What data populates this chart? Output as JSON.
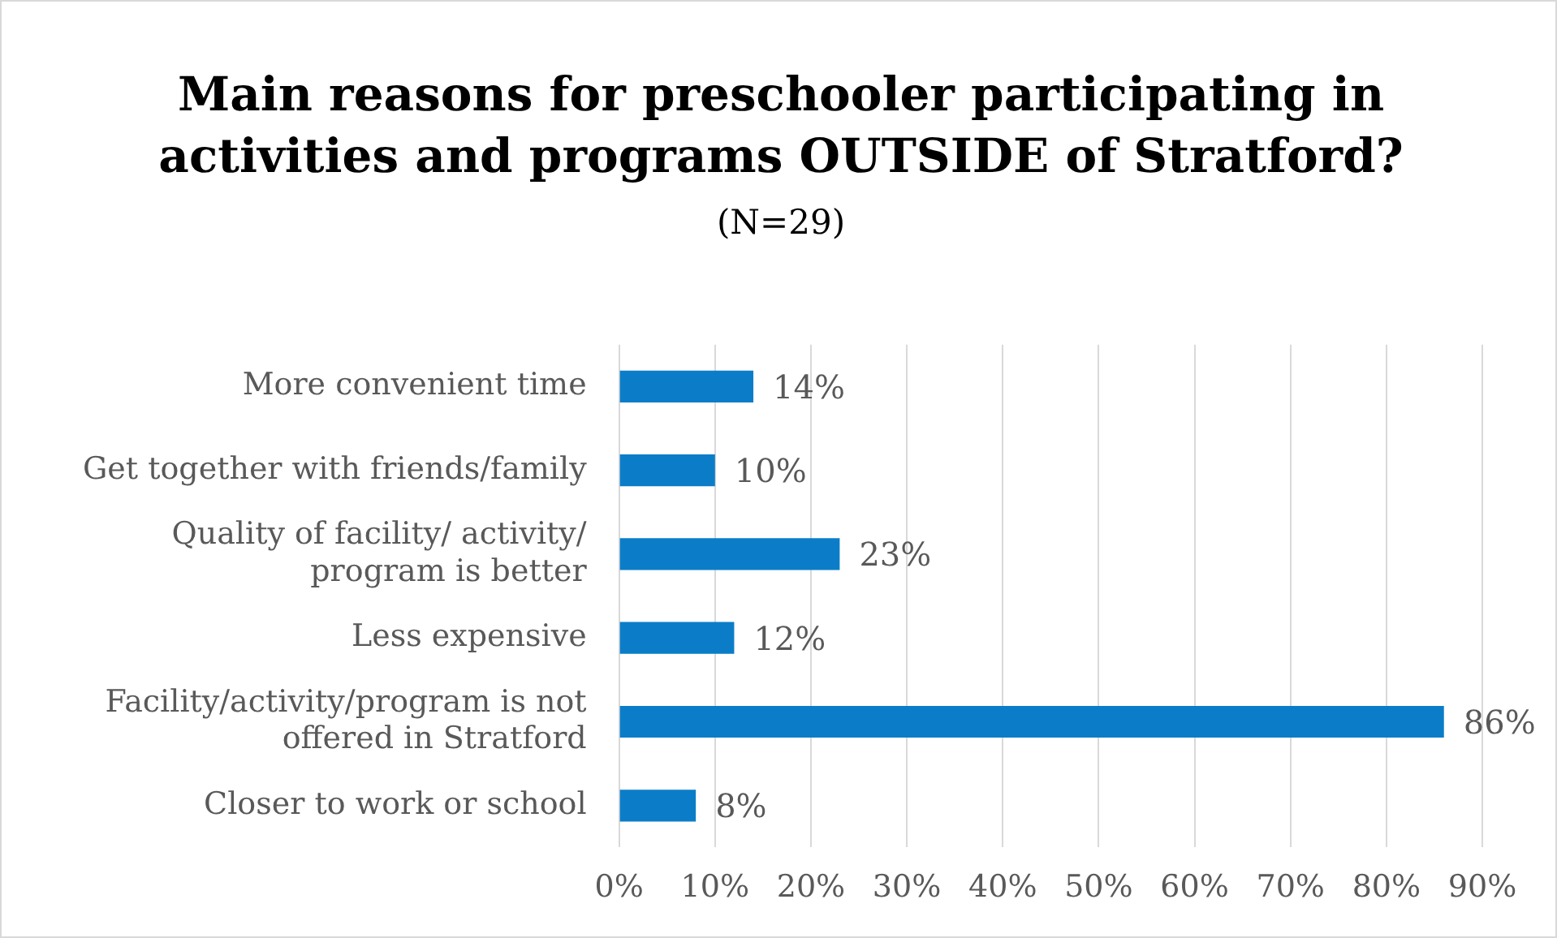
{
  "chart_data": {
    "type": "bar",
    "orientation": "horizontal",
    "title": "Main reasons for preschooler participating in activities and programs OUTSIDE of Stratford?",
    "subtitle": "(N=29)",
    "categories": [
      "More convenient time",
      "Get together with friends/family",
      "Quality of facility/ activity/ program is better",
      "Less expensive",
      "Facility/activity/program is not offered in Stratford",
      "Closer to work or school"
    ],
    "values": [
      14,
      10,
      23,
      12,
      86,
      8
    ],
    "value_labels": [
      "14%",
      "10%",
      "23%",
      "12%",
      "86%",
      "8%"
    ],
    "color": "#0b7dc8",
    "xlim": [
      0,
      90
    ],
    "xticks": [
      {
        "value": 0,
        "label": "0%"
      },
      {
        "value": 10,
        "label": "10%"
      },
      {
        "value": 20,
        "label": "20%"
      },
      {
        "value": 30,
        "label": "30%"
      },
      {
        "value": 40,
        "label": "40%"
      },
      {
        "value": 50,
        "label": "50%"
      },
      {
        "value": 60,
        "label": "60%"
      },
      {
        "value": 70,
        "label": "70%"
      },
      {
        "value": 80,
        "label": "80%"
      },
      {
        "value": 90,
        "label": "90%"
      }
    ],
    "grid": "x",
    "legend": false
  }
}
